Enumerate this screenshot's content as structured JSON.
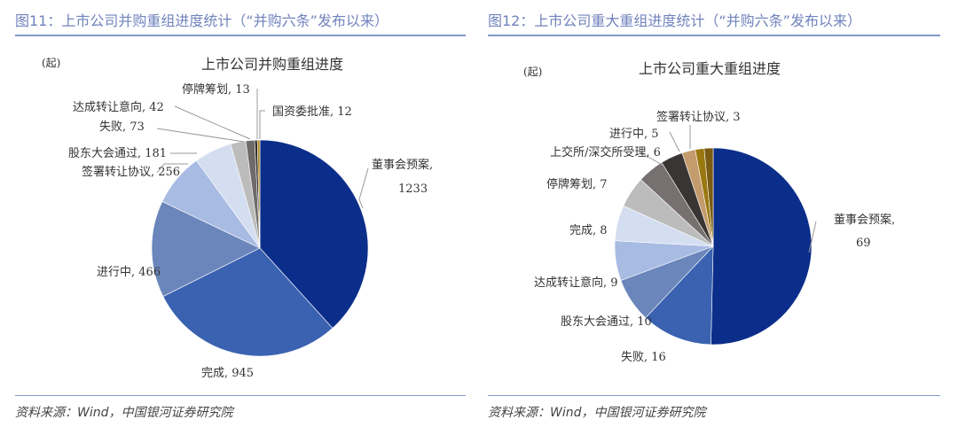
{
  "chart_data": [
    {
      "type": "pie",
      "figure_title": "图11：上市公司并购重组进度统计（“并购六条”发布以来）",
      "title": "上市公司并购重组进度",
      "unit": "(起)",
      "source": "资料来源：Wind，中国银河证券研究院",
      "slices": [
        {
          "label": "董事会预案",
          "value": 1233,
          "color": "#0b2e8a"
        },
        {
          "label": "完成",
          "value": 945,
          "color": "#3a62b0"
        },
        {
          "label": "进行中",
          "value": 466,
          "color": "#6a86bb"
        },
        {
          "label": "签署转让协议",
          "value": 256,
          "color": "#a8bbe2"
        },
        {
          "label": "股东大会通过",
          "value": 181,
          "color": "#d4def1"
        },
        {
          "label": "失败",
          "value": 73,
          "color": "#bcbcbc"
        },
        {
          "label": "达成转让意向",
          "value": 42,
          "color": "#6e6a6a"
        },
        {
          "label": "停牌筹划",
          "value": 13,
          "color": "#2f2c2c"
        },
        {
          "label": "国资委批准",
          "value": 12,
          "color": "#b08a20"
        }
      ]
    },
    {
      "type": "pie",
      "figure_title": "图12：上市公司重大重组进度统计（“并购六条”发布以来）",
      "title": "上市公司重大重组进度",
      "unit": "(起)",
      "source": "资料来源：Wind，中国银河证券研究院",
      "slices": [
        {
          "label": "董事会预案",
          "value": 69,
          "color": "#0b2e8a"
        },
        {
          "label": "失败",
          "value": 16,
          "color": "#3a62b0"
        },
        {
          "label": "股东大会通过",
          "value": 10,
          "color": "#6a86bb"
        },
        {
          "label": "达成转让意向",
          "value": 9,
          "color": "#a8bbe2"
        },
        {
          "label": "完成",
          "value": 8,
          "color": "#d4def1"
        },
        {
          "label": "停牌筹划",
          "value": 7,
          "color": "#bcbcbc"
        },
        {
          "label": "上交所/深交所受理",
          "value": 6,
          "color": "#767070"
        },
        {
          "label": "进行中",
          "value": 5,
          "color": "#3a3535"
        },
        {
          "label": "签署转让协议",
          "value": 3,
          "color": "#c49b6c"
        },
        {
          "label": "",
          "value": 2,
          "color": "#9a7810"
        },
        {
          "label": "",
          "value": 2,
          "color": "#7a5c12"
        }
      ]
    }
  ]
}
